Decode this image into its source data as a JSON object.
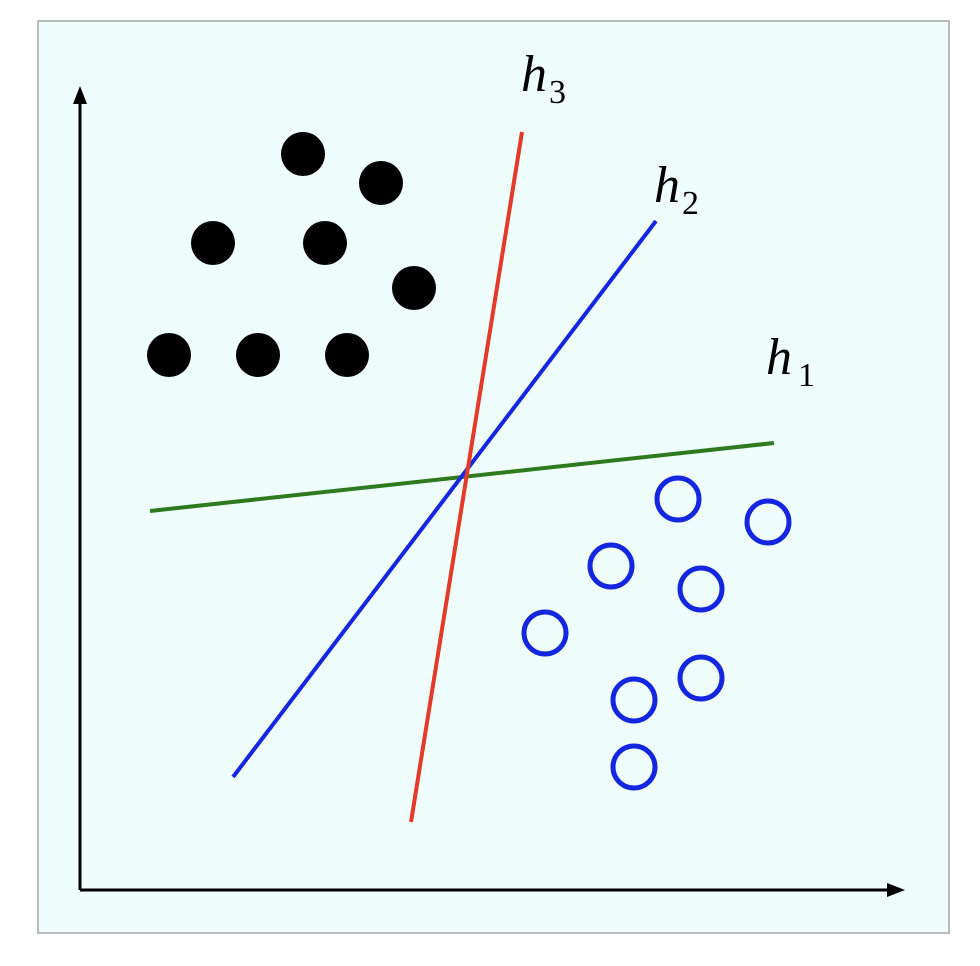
{
  "colors": {
    "background": "#f0fdfd",
    "border": "#b9bcbc",
    "axis": "#000000",
    "filled_points": "#000000",
    "hollow_points": "#1426e0",
    "h1": "#2f7a1f",
    "h2": "#1426e0",
    "h3": "#e53a2a"
  },
  "hyperplanes": [
    {
      "id": "h1",
      "letter": "h",
      "subscript": "1"
    },
    {
      "id": "h2",
      "letter": "h",
      "subscript": "2"
    },
    {
      "id": "h3",
      "letter": "h",
      "subscript": "3"
    }
  ],
  "point_classes": {
    "filled": {
      "count": 8,
      "style": "filled-circle"
    },
    "hollow": {
      "count": 8,
      "style": "hollow-circle"
    }
  }
}
